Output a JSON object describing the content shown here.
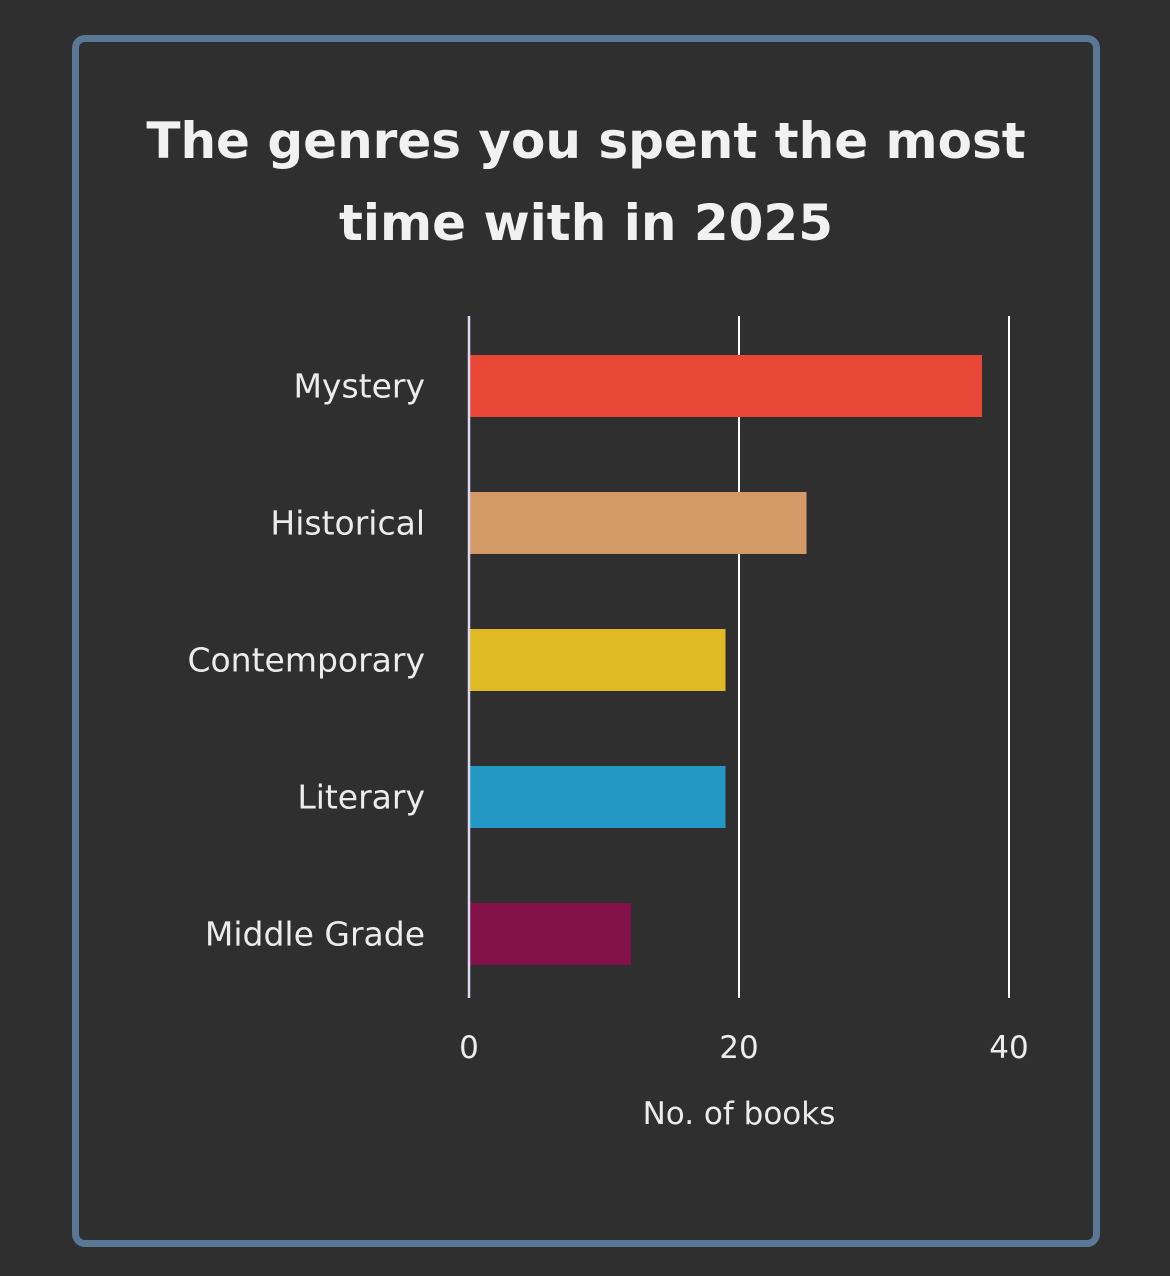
{
  "chart_data": {
    "type": "bar",
    "orientation": "horizontal",
    "title_lines": [
      "The genres you spent the most",
      "time with in 2025"
    ],
    "categories": [
      "Mystery",
      "Historical",
      "Contemporary",
      "Literary",
      "Middle Grade"
    ],
    "values": [
      38,
      25,
      19,
      19,
      12
    ],
    "colors": [
      "#e84637",
      "#d39966",
      "#dfba22",
      "#2398c5",
      "#821248"
    ],
    "xlabel": "No. of books",
    "ylabel": "",
    "xlim": [
      0,
      40
    ],
    "x_ticks": [
      0,
      20,
      40
    ],
    "x_tick_labels": [
      "0",
      "20",
      "40"
    ],
    "grid": "vertical",
    "legend": "none"
  },
  "theme": {
    "background": "#2f2f2f",
    "border": "#5b7796",
    "text": "#ececec",
    "grid": "#ffffff"
  }
}
